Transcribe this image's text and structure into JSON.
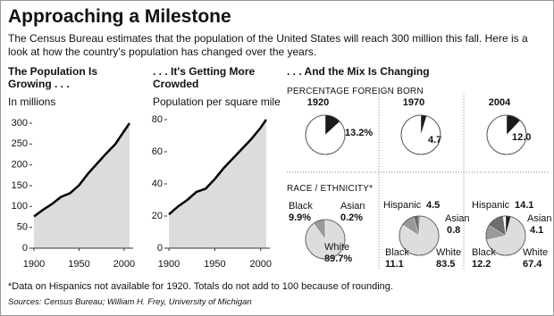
{
  "header": {
    "title": "Approaching a Milestone",
    "intro": "The Census Bureau estimates that the population of the United States will reach 300 million this fall. Here is a look at how the country's population has changed over the years."
  },
  "mix": {
    "title": ". . . And the Mix Is Changing",
    "foreign_born_label": "PERCENTAGE FOREIGN BORN",
    "race_label": "RACE / ETHNICITY*"
  },
  "chart_data": [
    {
      "type": "area",
      "title": "The Population Is Growing . . .",
      "subtitle": "In millions",
      "x": [
        1900,
        1910,
        1920,
        1930,
        1940,
        1950,
        1960,
        1970,
        1980,
        1990,
        2000,
        2006
      ],
      "values": [
        76,
        92,
        106,
        123,
        132,
        151,
        179,
        203,
        227,
        249,
        281,
        300
      ],
      "xlim": [
        1898,
        2010
      ],
      "xticks": [
        1900,
        1950,
        2000
      ],
      "ylim": [
        0,
        300
      ],
      "yticks": [
        0,
        50,
        100,
        150,
        200,
        250,
        300
      ],
      "color": "#dcdcdc",
      "line_color": "#000000"
    },
    {
      "type": "area",
      "title": ". . . It's Getting More Crowded",
      "subtitle": "Population per square mile",
      "x": [
        1900,
        1910,
        1920,
        1930,
        1940,
        1950,
        1960,
        1970,
        1980,
        1990,
        2000,
        2006
      ],
      "values": [
        21,
        26,
        30,
        35,
        37,
        43,
        50,
        56,
        62,
        68,
        75,
        80
      ],
      "xlim": [
        1898,
        2010
      ],
      "xticks": [
        1900,
        1950,
        2000
      ],
      "ylim": [
        0,
        80
      ],
      "yticks": [
        0,
        20,
        40,
        60,
        80
      ],
      "color": "#dcdcdc",
      "line_color": "#000000"
    },
    {
      "type": "pie",
      "title": "1920",
      "values": [
        13.2
      ],
      "value_labels": [
        "13.2%"
      ],
      "colors": [
        "#1a1a1a"
      ]
    },
    {
      "type": "pie",
      "title": "1970",
      "values": [
        4.7
      ],
      "colors": [
        "#1a1a1a"
      ]
    },
    {
      "type": "pie",
      "title": "2004",
      "values": [
        12.0
      ],
      "value_labels": [
        "12.0"
      ],
      "colors": [
        "#1a1a1a"
      ]
    },
    {
      "type": "pie",
      "categories": [
        "Asian",
        "White",
        "Black"
      ],
      "values": [
        0.2,
        89.7,
        9.9
      ],
      "value_labels": [
        "0.2%",
        "89.7%",
        "9.9%"
      ],
      "colors": [
        "#222222",
        "#dddddd",
        "#999999"
      ]
    },
    {
      "type": "pie",
      "categories": [
        "Asian",
        "White",
        "Black",
        "Hispanic"
      ],
      "values": [
        0.8,
        83.5,
        11.1,
        4.5
      ],
      "colors": [
        "#222222",
        "#dddddd",
        "#999999",
        "#6e6e6e"
      ]
    },
    {
      "type": "pie",
      "categories": [
        "Asian",
        "White",
        "Black",
        "Hispanic"
      ],
      "values": [
        4.1,
        67.4,
        12.2,
        14.1
      ],
      "colors": [
        "#222222",
        "#dddddd",
        "#999999",
        "#6e6e6e"
      ]
    }
  ],
  "footnote": "*Data on Hispanics not available for 1920. Totals do not add to 100 because of rounding.",
  "sources": "Sources: Census Bureau; William H. Frey, University of Michigan"
}
